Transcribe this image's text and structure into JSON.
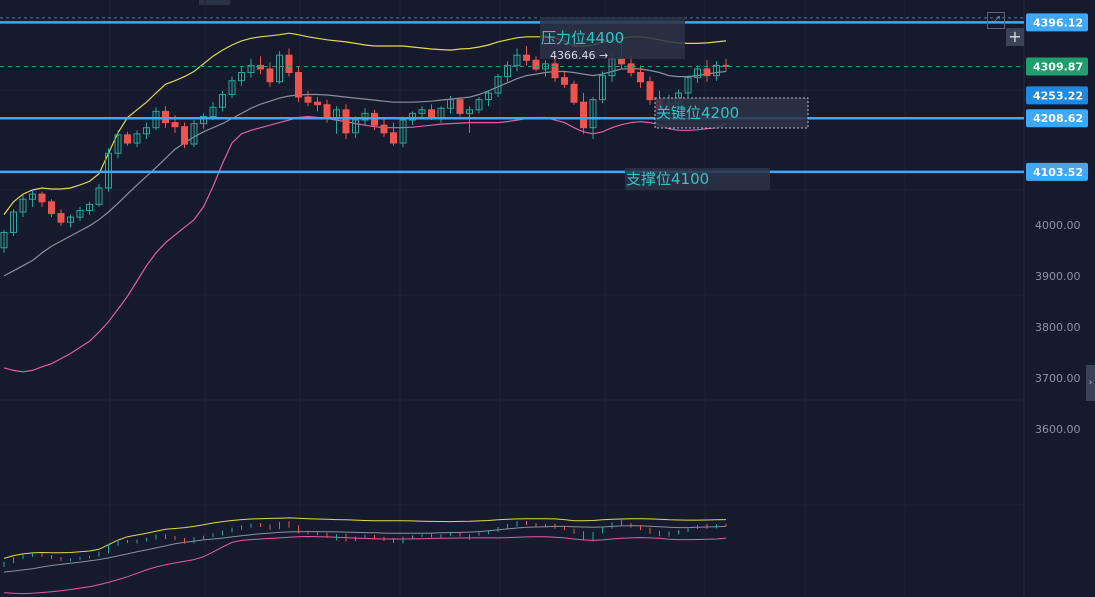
{
  "chart_data": {
    "type": "candlestick",
    "colors": {
      "up": "#26a69a",
      "down": "#ef5350",
      "upper_band": "#e6d64a",
      "middle_band": "#8a8f9c",
      "lower_band": "#e55aa8",
      "level_line": "#3ea8ff",
      "last_price_tag": "#1f9e6e",
      "background": "#151b2c"
    },
    "y_axis": {
      "range": [
        3520,
        4440
      ],
      "ticks": [
        4000,
        3900,
        3800,
        3700,
        3600
      ],
      "tick_labels": [
        "4000.00",
        "3900.00",
        "3800.00",
        "3700.00",
        "3600.00"
      ]
    },
    "levels": [
      {
        "price": 4396.12,
        "label": "4396.12",
        "annotation": "压力位4400",
        "style": "solid",
        "color": "#3ea8ff"
      },
      {
        "price": 4208.62,
        "label": "4208.62",
        "annotation": "关键位4200",
        "style": "solid",
        "color": "#3ea8ff"
      },
      {
        "price": 4103.52,
        "label": "4103.52",
        "annotation": "支撑位4100",
        "style": "solid",
        "color": "#3ea8ff"
      }
    ],
    "last_price": {
      "price": 4309.87,
      "label": "4309.87",
      "color": "#1f9e6e"
    },
    "extra_tag": {
      "price": 4253.22,
      "label": "4253.22",
      "color": "#1e88e5"
    },
    "peak_label": {
      "price": 4366.46,
      "text": "4366.46 →"
    },
    "candles": [
      [
        3955,
        3990,
        3945,
        3985
      ],
      [
        3985,
        4030,
        3978,
        4025
      ],
      [
        4025,
        4058,
        4015,
        4050
      ],
      [
        4050,
        4068,
        4035,
        4060
      ],
      [
        4060,
        4065,
        4035,
        4045
      ],
      [
        4045,
        4050,
        4015,
        4022
      ],
      [
        4022,
        4030,
        3998,
        4005
      ],
      [
        4005,
        4020,
        3995,
        4015
      ],
      [
        4015,
        4035,
        4008,
        4028
      ],
      [
        4028,
        4045,
        4020,
        4040
      ],
      [
        4040,
        4080,
        4035,
        4072
      ],
      [
        4072,
        4150,
        4065,
        4140
      ],
      [
        4140,
        4185,
        4130,
        4176
      ],
      [
        4176,
        4182,
        4155,
        4160
      ],
      [
        4160,
        4185,
        4152,
        4178
      ],
      [
        4178,
        4200,
        4168,
        4190
      ],
      [
        4190,
        4230,
        4185,
        4222
      ],
      [
        4222,
        4232,
        4190,
        4200
      ],
      [
        4200,
        4215,
        4180,
        4192
      ],
      [
        4192,
        4200,
        4150,
        4158
      ],
      [
        4158,
        4205,
        4152,
        4198
      ],
      [
        4198,
        4218,
        4188,
        4212
      ],
      [
        4212,
        4240,
        4205,
        4230
      ],
      [
        4230,
        4262,
        4222,
        4255
      ],
      [
        4255,
        4290,
        4248,
        4282
      ],
      [
        4282,
        4310,
        4272,
        4298
      ],
      [
        4298,
        4325,
        4288,
        4312
      ],
      [
        4312,
        4330,
        4295,
        4305
      ],
      [
        4305,
        4318,
        4270,
        4280
      ],
      [
        4280,
        4340,
        4276,
        4332
      ],
      [
        4332,
        4345,
        4290,
        4298
      ],
      [
        4298,
        4310,
        4240,
        4250
      ],
      [
        4250,
        4262,
        4232,
        4240
      ],
      [
        4240,
        4250,
        4222,
        4235
      ],
      [
        4235,
        4245,
        4200,
        4210
      ],
      [
        4210,
        4232,
        4178,
        4225
      ],
      [
        4225,
        4236,
        4168,
        4180
      ],
      [
        4180,
        4212,
        4170,
        4205
      ],
      [
        4205,
        4228,
        4195,
        4218
      ],
      [
        4218,
        4225,
        4185,
        4195
      ],
      [
        4195,
        4210,
        4172,
        4180
      ],
      [
        4180,
        4200,
        4155,
        4160
      ],
      [
        4160,
        4212,
        4152,
        4205
      ],
      [
        4205,
        4222,
        4195,
        4218
      ],
      [
        4218,
        4232,
        4208,
        4225
      ],
      [
        4225,
        4236,
        4205,
        4210
      ],
      [
        4210,
        4232,
        4200,
        4228
      ],
      [
        4228,
        4252,
        4218,
        4245
      ],
      [
        4245,
        4250,
        4212,
        4218
      ],
      [
        4218,
        4232,
        4180,
        4225
      ],
      [
        4225,
        4250,
        4218,
        4245
      ],
      [
        4245,
        4262,
        4232,
        4258
      ],
      [
        4258,
        4295,
        4250,
        4290
      ],
      [
        4290,
        4320,
        4280,
        4312
      ],
      [
        4312,
        4345,
        4300,
        4332
      ],
      [
        4332,
        4350,
        4312,
        4322
      ],
      [
        4322,
        4330,
        4300,
        4305
      ],
      [
        4305,
        4322,
        4290,
        4315
      ],
      [
        4315,
        4325,
        4280,
        4288
      ],
      [
        4288,
        4300,
        4268,
        4275
      ],
      [
        4275,
        4282,
        4235,
        4240
      ],
      [
        4240,
        4258,
        4178,
        4190
      ],
      [
        4190,
        4250,
        4168,
        4245
      ],
      [
        4245,
        4300,
        4238,
        4292
      ],
      [
        4292,
        4335,
        4280,
        4325
      ],
      [
        4325,
        4366,
        4305,
        4315
      ],
      [
        4315,
        4330,
        4290,
        4298
      ],
      [
        4298,
        4312,
        4268,
        4280
      ],
      [
        4280,
        4290,
        4235,
        4245
      ],
      [
        4245,
        4262,
        4215,
        4225
      ],
      [
        4225,
        4255,
        4212,
        4238
      ],
      [
        4238,
        4265,
        4230,
        4258
      ],
      [
        4258,
        4292,
        4250,
        4288
      ],
      [
        4288,
        4312,
        4278,
        4305
      ],
      [
        4305,
        4322,
        4280,
        4292
      ],
      [
        4292,
        4320,
        4282,
        4312
      ],
      [
        4312,
        4325,
        4300,
        4310
      ]
    ],
    "upper_band": [
      4020,
      4045,
      4060,
      4068,
      4072,
      4070,
      4070,
      4072,
      4078,
      4085,
      4100,
      4140,
      4180,
      4210,
      4225,
      4240,
      4258,
      4275,
      4282,
      4290,
      4300,
      4315,
      4330,
      4342,
      4352,
      4360,
      4365,
      4368,
      4370,
      4372,
      4375,
      4372,
      4368,
      4365,
      4362,
      4360,
      4358,
      4355,
      4352,
      4350,
      4350,
      4350,
      4350,
      4348,
      4346,
      4344,
      4343,
      4342,
      4344,
      4345,
      4348,
      4352,
      4358,
      4362,
      4366,
      4368,
      4368,
      4368,
      4366,
      4360,
      4350,
      4350,
      4352,
      4358,
      4362,
      4365,
      4368,
      4368,
      4366,
      4362,
      4358,
      4356,
      4355,
      4355,
      4356,
      4358,
      4360
    ],
    "middle_band": [
      3900,
      3910,
      3920,
      3930,
      3945,
      3958,
      3968,
      3978,
      3988,
      3998,
      4010,
      4025,
      4042,
      4060,
      4078,
      4095,
      4112,
      4130,
      4148,
      4160,
      4172,
      4182,
      4190,
      4198,
      4208,
      4218,
      4228,
      4236,
      4242,
      4248,
      4252,
      4254,
      4255,
      4255,
      4254,
      4252,
      4250,
      4248,
      4246,
      4244,
      4242,
      4240,
      4240,
      4240,
      4241,
      4242,
      4244,
      4246,
      4248,
      4250,
      4255,
      4262,
      4270,
      4278,
      4286,
      4292,
      4295,
      4298,
      4300,
      4300,
      4298,
      4295,
      4292,
      4295,
      4300,
      4305,
      4306,
      4305,
      4302,
      4298,
      4292,
      4290,
      4290,
      4292,
      4295,
      4298,
      4300
    ],
    "lower_band": [
      3720,
      3715,
      3712,
      3715,
      3722,
      3728,
      3738,
      3748,
      3760,
      3772,
      3790,
      3810,
      3835,
      3860,
      3890,
      3920,
      3945,
      3965,
      3980,
      3995,
      4010,
      4035,
      4075,
      4120,
      4160,
      4178,
      4185,
      4190,
      4195,
      4200,
      4205,
      4210,
      4212,
      4210,
      4208,
      4205,
      4202,
      4198,
      4195,
      4192,
      4190,
      4190,
      4190,
      4191,
      4193,
      4195,
      4197,
      4198,
      4199,
      4200,
      4200,
      4200,
      4200,
      4202,
      4205,
      4208,
      4210,
      4210,
      4205,
      4200,
      4190,
      4182,
      4178,
      4182,
      4190,
      4196,
      4200,
      4202,
      4200,
      4196,
      4188,
      4185,
      4185,
      4186,
      4188,
      4190,
      4198
    ]
  }
}
